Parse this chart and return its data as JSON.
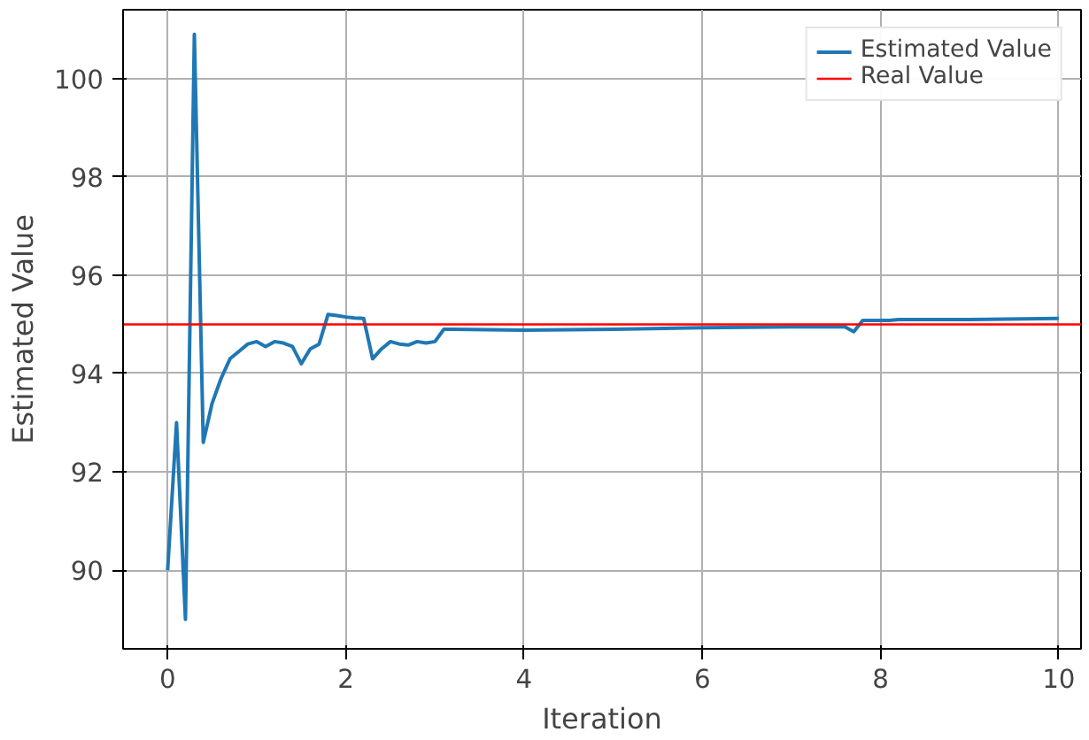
{
  "chart_data": {
    "type": "line",
    "xlabel": "Iteration",
    "ylabel": "Estimated Value",
    "xlim": [
      -0.5,
      10.25
    ],
    "ylim": [
      88.4,
      101.4
    ],
    "xticks": [
      0,
      2,
      4,
      6,
      8,
      10
    ],
    "yticks": [
      90,
      92,
      94,
      96,
      98,
      100
    ],
    "grid": true,
    "legend": "top right",
    "series": [
      {
        "name": "Estimated Value",
        "color": "#1f77b4",
        "x": [
          0,
          0.1,
          0.2,
          0.3,
          0.4,
          0.5,
          0.6,
          0.7,
          0.8,
          0.9,
          1.0,
          1.1,
          1.2,
          1.3,
          1.4,
          1.5,
          1.6,
          1.7,
          1.8,
          1.9,
          2.0,
          2.1,
          2.2,
          2.3,
          2.4,
          2.5,
          2.6,
          2.7,
          2.8,
          2.9,
          3.0,
          3.1,
          3.2,
          4.0,
          5.0,
          6.0,
          7.0,
          7.6,
          7.7,
          7.8,
          8.1,
          8.2,
          9.0,
          10.0
        ],
        "values": [
          90,
          93.0,
          89.0,
          100.9,
          92.6,
          93.4,
          93.9,
          94.3,
          94.45,
          94.6,
          94.65,
          94.55,
          94.65,
          94.62,
          94.55,
          94.2,
          94.5,
          94.6,
          95.2,
          95.18,
          95.15,
          95.13,
          95.12,
          94.3,
          94.5,
          94.65,
          94.6,
          94.58,
          94.65,
          94.62,
          94.65,
          94.9,
          94.9,
          94.88,
          94.9,
          94.93,
          94.95,
          94.95,
          94.85,
          95.08,
          95.08,
          95.1,
          95.1,
          95.12
        ]
      }
    ],
    "ref_lines": [
      {
        "axis": "y",
        "value": 95,
        "label": "Real Value",
        "color": "#ff0000",
        "line_style": "solid"
      }
    ]
  }
}
